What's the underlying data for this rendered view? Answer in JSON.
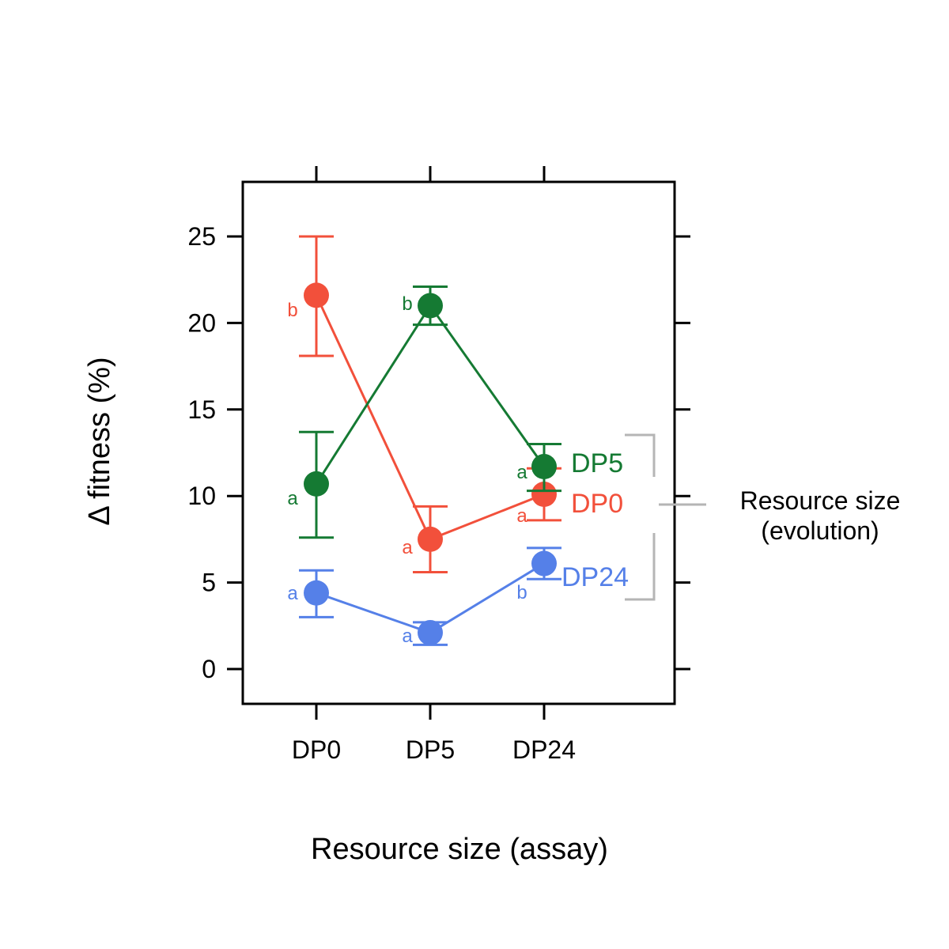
{
  "chart_data": {
    "type": "line",
    "xlabel": "Resource size (assay)",
    "ylabel": "Δ fitness (%)",
    "categories": [
      "DP0",
      "DP5",
      "DP24"
    ],
    "ylim": [
      -2,
      28
    ],
    "yticks": [
      0,
      5,
      10,
      15,
      20,
      25
    ],
    "grid": false,
    "legend_title": [
      "Resource size",
      "(evolution)"
    ],
    "legend_placement": "right",
    "series": [
      {
        "name": "DP0",
        "color": "#F2503B",
        "values": [
          21.6,
          7.5,
          10.1
        ],
        "error_low": [
          18.1,
          5.6,
          8.6
        ],
        "error_high": [
          25.0,
          9.4,
          11.6
        ],
        "letters": [
          "b",
          "a",
          "a"
        ]
      },
      {
        "name": "DP5",
        "color": "#157A33",
        "values": [
          10.7,
          21.0,
          11.7
        ],
        "error_low": [
          7.6,
          19.9,
          10.3
        ],
        "error_high": [
          13.7,
          22.1,
          13.0
        ],
        "letters": [
          "a",
          "b",
          "a"
        ]
      },
      {
        "name": "DP24",
        "color": "#5580E8",
        "values": [
          4.4,
          2.1,
          6.1
        ],
        "error_low": [
          3.0,
          1.4,
          5.2
        ],
        "error_high": [
          5.7,
          2.7,
          7.0
        ],
        "letters": [
          "a",
          "a",
          "b"
        ]
      }
    ]
  }
}
